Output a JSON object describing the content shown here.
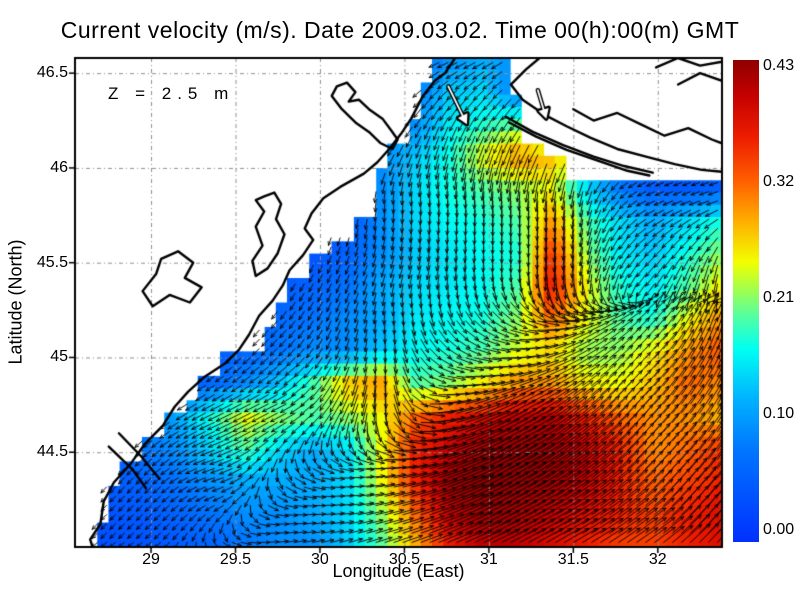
{
  "title": "Current velocity (m/s). Date 2009.03.02. Time 00(h):00(m) GMT",
  "annotation": "Z = 2.5 m",
  "axes": {
    "xlabel": "Longitude (East)",
    "ylabel": "Latitude (North)",
    "xlim": [
      28.55,
      32.38
    ],
    "ylim": [
      44.0,
      46.58
    ],
    "xticks": [
      29,
      29.5,
      30,
      30.5,
      31,
      31.5,
      32
    ],
    "xtick_labels": [
      "29",
      "29.5",
      "30",
      "30.5",
      "31",
      "31.5",
      "32"
    ],
    "yticks": [
      46.5,
      46,
      45.5,
      45,
      44.5
    ],
    "ytick_labels": [
      "46.5",
      "46",
      "45.5",
      "45",
      "44.5"
    ],
    "grid_color": "#909090"
  },
  "colorbar": {
    "min": 0,
    "max": 0.43,
    "tick_values": [
      0.43,
      0.3225,
      0.215,
      0.1075,
      0
    ],
    "tick_labels": [
      "0.43",
      "0.32",
      "0.21",
      "0.10",
      "0.00"
    ],
    "stops": [
      [
        0,
        "#0030ff"
      ],
      [
        0.19,
        "#0075ff"
      ],
      [
        0.3,
        "#00b4ff"
      ],
      [
        0.4,
        "#00fff2"
      ],
      [
        0.47,
        "#55ff9e"
      ],
      [
        0.53,
        "#aaff44"
      ],
      [
        0.58,
        "#f2ff00"
      ],
      [
        0.67,
        "#ffaa00"
      ],
      [
        0.75,
        "#ff5e00"
      ],
      [
        0.84,
        "#ee1c00"
      ],
      [
        0.93,
        "#c20000"
      ],
      [
        1,
        "#8e0000"
      ]
    ]
  },
  "chart_data": {
    "type": "heatmap",
    "subtype": "vector-field-over-speed-heatmap",
    "units": "m/s",
    "depth": "Z = 2.5 m",
    "speed_grid": {
      "lon_start": 28.55,
      "lon_end": 32.38,
      "lat_start": 46.58,
      "lat_end": 44.0,
      "ncols": 20,
      "nrows": 16,
      "values": [
        [
          0.05,
          0.05,
          0.05,
          0.05,
          0.05,
          0.05,
          0.05,
          0.05,
          0.05,
          0.08,
          0.07,
          0.1,
          0.12,
          0.1,
          0.05,
          0.05,
          0.05,
          0.05,
          0.05,
          0.05
        ],
        [
          0.05,
          0.05,
          0.05,
          0.05,
          0.05,
          0.05,
          0.05,
          0.05,
          0.05,
          0.08,
          0.08,
          0.14,
          0.15,
          0.08,
          0.05,
          0.05,
          0.05,
          0.05,
          0.05,
          0.05
        ],
        [
          0.05,
          0.05,
          0.05,
          0.05,
          0.05,
          0.05,
          0.05,
          0.05,
          0.05,
          0.1,
          0.1,
          0.16,
          0.18,
          0.2,
          0.1,
          0.05,
          0.05,
          0.05,
          0.05,
          0.05
        ],
        [
          0.05,
          0.05,
          0.05,
          0.05,
          0.05,
          0.05,
          0.05,
          0.05,
          0.08,
          0.1,
          0.14,
          0.18,
          0.25,
          0.3,
          0.28,
          0.22,
          0.12,
          0.08,
          0.06,
          0.05
        ],
        [
          0.04,
          0.04,
          0.04,
          0.04,
          0.04,
          0.04,
          0.04,
          0.04,
          0.06,
          0.1,
          0.15,
          0.18,
          0.2,
          0.22,
          0.25,
          0.15,
          0.08,
          0.05,
          0.05,
          0.06
        ],
        [
          0.03,
          0.03,
          0.03,
          0.03,
          0.03,
          0.03,
          0.03,
          0.03,
          0.05,
          0.1,
          0.15,
          0.17,
          0.18,
          0.2,
          0.3,
          0.2,
          0.15,
          0.12,
          0.15,
          0.18
        ],
        [
          0.04,
          0.04,
          0.04,
          0.04,
          0.04,
          0.04,
          0.04,
          0.04,
          0.06,
          0.1,
          0.14,
          0.16,
          0.17,
          0.18,
          0.35,
          0.22,
          0.16,
          0.14,
          0.18,
          0.22
        ],
        [
          0.03,
          0.03,
          0.03,
          0.03,
          0.03,
          0.04,
          0.05,
          0.06,
          0.08,
          0.12,
          0.15,
          0.16,
          0.17,
          0.2,
          0.37,
          0.25,
          0.18,
          0.16,
          0.2,
          0.26
        ],
        [
          0.03,
          0.03,
          0.03,
          0.03,
          0.04,
          0.05,
          0.07,
          0.08,
          0.1,
          0.12,
          0.16,
          0.17,
          0.18,
          0.22,
          0.32,
          0.25,
          0.2,
          0.18,
          0.25,
          0.3
        ],
        [
          0.03,
          0.03,
          0.03,
          0.04,
          0.05,
          0.06,
          0.08,
          0.1,
          0.1,
          0.14,
          0.17,
          0.18,
          0.2,
          0.24,
          0.26,
          0.22,
          0.22,
          0.26,
          0.3,
          0.33
        ],
        [
          0.04,
          0.04,
          0.04,
          0.05,
          0.07,
          0.1,
          0.14,
          0.2,
          0.28,
          0.3,
          0.2,
          0.22,
          0.26,
          0.3,
          0.3,
          0.26,
          0.25,
          0.28,
          0.32,
          0.3
        ],
        [
          0.05,
          0.06,
          0.08,
          0.12,
          0.18,
          0.25,
          0.22,
          0.2,
          0.22,
          0.25,
          0.32,
          0.36,
          0.38,
          0.4,
          0.4,
          0.36,
          0.32,
          0.3,
          0.3,
          0.28
        ],
        [
          0.05,
          0.06,
          0.08,
          0.1,
          0.15,
          0.2,
          0.15,
          0.12,
          0.15,
          0.25,
          0.36,
          0.4,
          0.42,
          0.43,
          0.42,
          0.4,
          0.36,
          0.3,
          0.32,
          0.35
        ],
        [
          0.04,
          0.05,
          0.06,
          0.08,
          0.1,
          0.12,
          0.12,
          0.12,
          0.15,
          0.25,
          0.36,
          0.42,
          0.43,
          0.43,
          0.42,
          0.4,
          0.36,
          0.32,
          0.34,
          0.36
        ],
        [
          0.04,
          0.04,
          0.05,
          0.06,
          0.08,
          0.1,
          0.1,
          0.12,
          0.15,
          0.22,
          0.32,
          0.4,
          0.42,
          0.42,
          0.4,
          0.38,
          0.36,
          0.34,
          0.36,
          0.38
        ],
        [
          0.03,
          0.04,
          0.04,
          0.05,
          0.06,
          0.08,
          0.1,
          0.1,
          0.14,
          0.2,
          0.28,
          0.36,
          0.4,
          0.4,
          0.38,
          0.36,
          0.34,
          0.34,
          0.36,
          0.38
        ]
      ]
    },
    "direction_grid": {
      "ncols": 10,
      "nrows": 8,
      "u": [
        [
          0,
          0,
          0,
          0,
          -0.6,
          -1,
          -0.9,
          -0.6,
          -0.8,
          -1
        ],
        [
          0,
          0,
          0,
          0,
          -0.8,
          -0.4,
          -0.5,
          -0.7,
          -0.9,
          -1
        ],
        [
          -0.3,
          -0.3,
          -0.3,
          -0.4,
          -0.1,
          0,
          0,
          -0.1,
          -0.9,
          -1
        ],
        [
          -0.3,
          -0.4,
          -0.4,
          -0.5,
          -0.3,
          -0.2,
          0,
          -0.1,
          -0.6,
          -0.2
        ],
        [
          -0.6,
          -0.8,
          -0.8,
          -0.7,
          -0.2,
          0.5,
          1,
          1,
          0.8,
          0.3
        ],
        [
          -0.7,
          -0.8,
          -1,
          -1,
          -0.3,
          0.8,
          1,
          1,
          0.8,
          0.6
        ],
        [
          -0.6,
          -0.7,
          -1,
          0.4,
          1,
          1,
          1,
          1,
          0.9,
          0.7
        ],
        [
          -0.5,
          -0.6,
          0.3,
          1,
          1,
          1,
          1,
          1,
          1,
          0.8
        ]
      ],
      "v": [
        [
          -0.3,
          -0.3,
          -0.3,
          -0.3,
          -0.3,
          -0.4,
          -0.5,
          -0.4,
          -0.3,
          -0.3
        ],
        [
          -0.4,
          -0.4,
          -0.4,
          -0.4,
          -0.5,
          -1,
          -0.9,
          -0.6,
          -0.4,
          -0.4
        ],
        [
          -1,
          -1,
          -1,
          -1,
          -1,
          -1,
          -1,
          -1,
          -0.4,
          -0.3
        ],
        [
          -1,
          -1,
          -1,
          -0.9,
          -0.8,
          -1,
          -1,
          -1,
          -0.7,
          -1
        ],
        [
          -0.8,
          -0.8,
          -0.8,
          -0.8,
          -1,
          -0.6,
          -0.2,
          0.5,
          0.9,
          1
        ],
        [
          -0.7,
          -0.6,
          -0.5,
          -0.5,
          -1,
          0.1,
          0.5,
          0.8,
          1,
          1
        ],
        [
          -0.7,
          -0.7,
          -0.3,
          -0.3,
          0.1,
          0.3,
          0.6,
          0.7,
          0.9,
          1
        ],
        [
          -0.5,
          -0.5,
          -0.2,
          0.2,
          0.3,
          0.4,
          0.5,
          0.6,
          0.7,
          0.9
        ]
      ]
    },
    "sea_mask": {
      "west_steps": [
        [
          46.58,
          46.42,
          30.66
        ],
        [
          46.42,
          46.28,
          30.58
        ],
        [
          46.28,
          46.14,
          30.5
        ],
        [
          46.14,
          46.0,
          30.42
        ],
        [
          46.0,
          45.88,
          30.36
        ],
        [
          45.88,
          45.76,
          30.3
        ],
        [
          45.76,
          45.64,
          30.22
        ],
        [
          45.64,
          45.52,
          30.06
        ],
        [
          45.52,
          45.4,
          29.92
        ],
        [
          45.4,
          45.28,
          29.82
        ],
        [
          45.28,
          45.16,
          29.74
        ],
        [
          45.16,
          45.04,
          29.64
        ],
        [
          45.04,
          44.92,
          29.44
        ],
        [
          44.92,
          44.8,
          29.28
        ],
        [
          44.8,
          44.68,
          29.18
        ],
        [
          44.68,
          44.56,
          29.1
        ],
        [
          44.56,
          44.44,
          28.94
        ],
        [
          44.44,
          44.32,
          28.82
        ],
        [
          44.32,
          44.16,
          28.72
        ],
        [
          44.16,
          44.0,
          28.66
        ]
      ],
      "north_steps": [
        [
          31.1,
          46.58
        ],
        [
          31.22,
          46.4
        ],
        [
          31.33,
          46.12
        ],
        [
          31.47,
          46.04
        ],
        [
          32.38,
          45.96
        ]
      ]
    },
    "coastlines": [
      [
        [
          30.8,
          46.58
        ],
        [
          30.74,
          46.5
        ],
        [
          30.68,
          46.46
        ],
        [
          30.61,
          46.38
        ],
        [
          30.54,
          46.26
        ],
        [
          30.48,
          46.18
        ],
        [
          30.41,
          46.1
        ],
        [
          30.34,
          46.03
        ],
        [
          30.26,
          45.97
        ],
        [
          30.12,
          45.9
        ],
        [
          30.02,
          45.84
        ],
        [
          29.95,
          45.76
        ],
        [
          29.91,
          45.68
        ],
        [
          29.96,
          45.62
        ],
        [
          29.9,
          45.54
        ],
        [
          29.82,
          45.46
        ],
        [
          29.78,
          45.38
        ],
        [
          29.72,
          45.3
        ],
        [
          29.64,
          45.22
        ],
        [
          29.58,
          45.12
        ],
        [
          29.52,
          45.04
        ],
        [
          29.44,
          44.97
        ],
        [
          29.32,
          44.9
        ],
        [
          29.22,
          44.82
        ],
        [
          29.14,
          44.74
        ],
        [
          29.07,
          44.64
        ],
        [
          28.96,
          44.54
        ],
        [
          28.88,
          44.44
        ],
        [
          28.78,
          44.34
        ],
        [
          28.72,
          44.24
        ],
        [
          28.7,
          44.12
        ],
        [
          28.64,
          44.04
        ],
        [
          28.66,
          43.98
        ]
      ],
      [
        [
          30.1,
          46.43
        ],
        [
          30.16,
          46.45
        ],
        [
          30.21,
          46.4
        ],
        [
          30.17,
          46.35
        ],
        [
          30.23,
          46.36
        ],
        [
          30.29,
          46.31
        ],
        [
          30.37,
          46.26
        ],
        [
          30.42,
          46.2
        ],
        [
          30.46,
          46.15
        ],
        [
          30.43,
          46.1
        ],
        [
          30.36,
          46.13
        ],
        [
          30.29,
          46.19
        ],
        [
          30.21,
          46.24
        ],
        [
          30.13,
          46.31
        ],
        [
          30.07,
          46.38
        ],
        [
          30.1,
          46.43
        ]
      ],
      [
        [
          29.67,
          45.85
        ],
        [
          29.73,
          45.87
        ],
        [
          29.77,
          45.81
        ],
        [
          29.74,
          45.73
        ],
        [
          29.79,
          45.65
        ],
        [
          29.75,
          45.55
        ],
        [
          29.69,
          45.47
        ],
        [
          29.62,
          45.43
        ],
        [
          29.6,
          45.51
        ],
        [
          29.66,
          45.59
        ],
        [
          29.62,
          45.69
        ],
        [
          29.67,
          45.77
        ],
        [
          29.62,
          45.83
        ],
        [
          29.67,
          45.85
        ]
      ],
      [
        [
          29.06,
          45.52
        ],
        [
          29.16,
          45.56
        ],
        [
          29.25,
          45.5
        ],
        [
          29.2,
          45.42
        ],
        [
          29.3,
          45.37
        ],
        [
          29.23,
          45.29
        ],
        [
          29.11,
          45.33
        ],
        [
          29.01,
          45.27
        ],
        [
          28.95,
          45.35
        ],
        [
          29.03,
          45.44
        ],
        [
          29.06,
          45.52
        ]
      ],
      [
        [
          28.81,
          44.6
        ],
        [
          28.94,
          44.48
        ],
        [
          29.05,
          44.36
        ]
      ],
      [
        [
          28.75,
          44.53
        ],
        [
          28.89,
          44.41
        ],
        [
          28.97,
          44.31
        ]
      ],
      [
        [
          31.3,
          46.58
        ],
        [
          31.22,
          46.52
        ],
        [
          31.13,
          46.44
        ],
        [
          31.2,
          46.36
        ],
        [
          31.33,
          46.28
        ],
        [
          31.46,
          46.22
        ],
        [
          31.6,
          46.16
        ],
        [
          31.76,
          46.1
        ],
        [
          31.93,
          46.06
        ],
        [
          32.1,
          46.02
        ],
        [
          32.26,
          45.99
        ],
        [
          32.38,
          45.98
        ]
      ],
      [
        [
          31.1,
          46.27
        ],
        [
          31.26,
          46.19
        ],
        [
          31.44,
          46.12
        ],
        [
          31.62,
          46.06
        ],
        [
          31.8,
          46.01
        ],
        [
          31.97,
          45.975
        ]
      ],
      [
        [
          31.12,
          46.24
        ],
        [
          31.28,
          46.165
        ],
        [
          31.46,
          46.095
        ],
        [
          31.64,
          46.04
        ],
        [
          31.82,
          45.985
        ],
        [
          31.95,
          45.96
        ]
      ],
      [
        [
          31.5,
          46.31
        ],
        [
          31.62,
          46.25
        ],
        [
          31.76,
          46.29
        ],
        [
          31.9,
          46.23
        ],
        [
          32.04,
          46.17
        ],
        [
          32.18,
          46.21
        ],
        [
          32.32,
          46.15
        ],
        [
          32.38,
          46.13
        ]
      ],
      [
        [
          31.99,
          46.53
        ],
        [
          32.12,
          46.58
        ],
        [
          32.25,
          46.54
        ],
        [
          32.38,
          46.56
        ]
      ],
      [
        [
          32.12,
          46.44
        ],
        [
          32.25,
          46.5
        ],
        [
          32.38,
          46.46
        ]
      ]
    ],
    "outline_arrows": [
      [
        30.76,
        46.43,
        30.87,
        46.23
      ],
      [
        31.29,
        46.41,
        31.34,
        46.26
      ]
    ]
  }
}
